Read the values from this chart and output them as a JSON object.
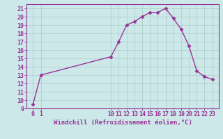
{
  "x": [
    0,
    1,
    10,
    11,
    12,
    13,
    14,
    15,
    16,
    17,
    18,
    19,
    20,
    21,
    22,
    23
  ],
  "y": [
    9.5,
    13.0,
    15.2,
    17.0,
    19.0,
    19.4,
    20.0,
    20.5,
    20.5,
    21.0,
    19.8,
    18.5,
    16.5,
    13.5,
    12.8,
    12.5
  ],
  "line_color": "#993399",
  "marker": "D",
  "marker_size": 2.5,
  "bg_color": "#cce8e8",
  "grid_color": "#aacccc",
  "xlabel": "Windchill (Refroidissement éolien,°C)",
  "ylim": [
    9,
    21.5
  ],
  "xlim": [
    -0.8,
    23.8
  ],
  "yticks": [
    9,
    10,
    11,
    12,
    13,
    14,
    15,
    16,
    17,
    18,
    19,
    20,
    21
  ],
  "xtick_positions": [
    0,
    1,
    10,
    11,
    12,
    13,
    14,
    15,
    16,
    17,
    18,
    19,
    20,
    21,
    22,
    23
  ],
  "xtick_labels": [
    "0",
    "1",
    "10",
    "11",
    "12",
    "13",
    "14",
    "15",
    "16",
    "17",
    "18",
    "19",
    "20",
    "21",
    "22",
    "23"
  ],
  "axis_color": "#993399",
  "tick_color": "#993399",
  "label_color": "#993399",
  "xlabel_fontsize": 6.5,
  "tick_fontsize": 6.0,
  "linewidth": 1.0
}
